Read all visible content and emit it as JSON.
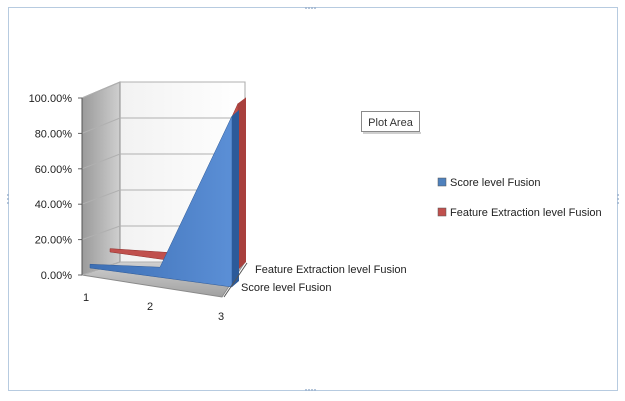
{
  "tooltip": {
    "text": "Plot Area"
  },
  "chart_data": {
    "type": "area",
    "variant": "3d-area",
    "categories": [
      "1",
      "2",
      "3"
    ],
    "series": [
      {
        "name": "Feature Extraction  level Fusion",
        "values": [
          0.02,
          0.02,
          0.98
        ]
      },
      {
        "name": "Score level Fusion",
        "values": [
          0.02,
          0.02,
          0.9
        ]
      }
    ],
    "y_ticks": [
      "100.00%",
      "80.00%",
      "60.00%",
      "40.00%",
      "20.00%",
      "0.00%"
    ],
    "ylim": [
      0,
      1
    ],
    "grid": true,
    "legend_position": "right",
    "colors": {
      "score": "#4f81bd",
      "feature": "#c0504d"
    }
  }
}
